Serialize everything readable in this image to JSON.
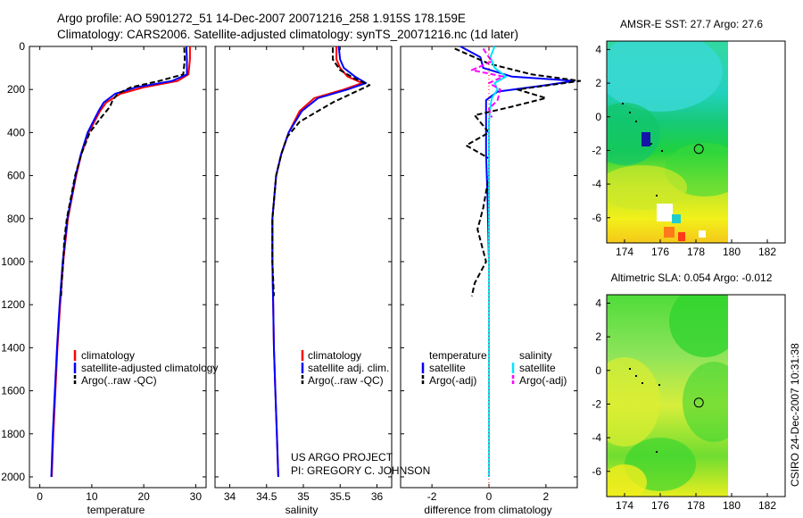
{
  "header": {
    "line1": "Argo profile: AO 5901272_51 14-Dec-2007 20071216_258 1.915S 178.159E",
    "line2": "Climatology: CARS2006. Satellite-adjusted climatology: synTS_20071216.nc (1d later)"
  },
  "credits": {
    "project": "US ARGO PROJECT",
    "pi": "PI: GREGORY C. JOHNSON",
    "stamp": "CSIRO 24-Dec-2007 10:31:38"
  },
  "colors": {
    "climatology": "#ff0000",
    "satellite": "#0000ff",
    "argo": "#000000",
    "salinity_satellite": "#00e5ff",
    "salinity_argo": "#ff00ff"
  },
  "chart_data": [
    {
      "type": "line",
      "id": "temperature",
      "xlabel": "temperature",
      "ylabel": "",
      "xlim": [
        -2,
        32
      ],
      "ylim": [
        2050,
        0
      ],
      "x_ticks": [
        0,
        10,
        20,
        30
      ],
      "x_tick_labels": [
        "0",
        "10",
        "20",
        "30"
      ],
      "y_ticks": [
        0,
        200,
        400,
        600,
        800,
        1000,
        1200,
        1400,
        1600,
        1800,
        2000
      ],
      "y_tick_labels": [
        "0",
        "200",
        "400",
        "600",
        "800",
        "1000",
        "1200",
        "1400",
        "1600",
        "1800",
        "2000"
      ],
      "legend": [
        "climatology",
        "satellite-adjusted climatology",
        "Argo(..raw -QC)"
      ],
      "legend_position": "lower-right",
      "series": [
        {
          "name": "climatology",
          "style": "solid",
          "depth": [
            0,
            60,
            130,
            160,
            190,
            220,
            260,
            300,
            400,
            500,
            600,
            800,
            1000,
            1200,
            1400,
            1600,
            1800,
            2000
          ],
          "values": [
            28.9,
            28.9,
            28.6,
            26.5,
            20.0,
            15.5,
            12.8,
            11.6,
            9.4,
            8.0,
            7.0,
            5.4,
            4.5,
            3.9,
            3.4,
            3.0,
            2.6,
            2.3
          ]
        },
        {
          "name": "satellite-adjusted climatology",
          "style": "solid",
          "depth": [
            0,
            60,
            130,
            160,
            190,
            220,
            260,
            300,
            400,
            500,
            600,
            800,
            1000,
            1200,
            1400,
            1600,
            1800,
            2000
          ],
          "values": [
            28.2,
            28.3,
            28.3,
            25.5,
            18.5,
            14.5,
            12.3,
            11.3,
            9.2,
            7.9,
            6.9,
            5.3,
            4.4,
            3.8,
            3.3,
            2.9,
            2.5,
            2.2
          ]
        },
        {
          "name": "Argo(..raw -QC)",
          "style": "dashed",
          "depth": [
            5,
            60,
            130,
            160,
            190,
            220,
            250,
            280,
            330,
            400,
            500,
            600,
            700,
            800,
            900,
            1000,
            1100,
            1160
          ],
          "values": [
            27.8,
            27.9,
            27.6,
            23.0,
            17.5,
            15.0,
            14.0,
            13.5,
            11.8,
            9.6,
            8.0,
            6.8,
            6.0,
            5.2,
            4.7,
            4.5,
            4.2,
            4.1
          ]
        }
      ]
    },
    {
      "type": "line",
      "id": "salinity",
      "xlabel": "salinity",
      "ylabel": "",
      "xlim": [
        33.8,
        36.2
      ],
      "ylim": [
        2050,
        0
      ],
      "x_ticks": [
        34,
        34.5,
        35,
        35.5,
        36
      ],
      "x_tick_labels": [
        "34",
        "34.5",
        "35",
        "35.5",
        "36"
      ],
      "legend": [
        "climatology",
        "satellite adj. clim.",
        "Argo(..raw -QC)"
      ],
      "legend_position": "lower-right",
      "series": [
        {
          "name": "climatology",
          "style": "solid",
          "depth": [
            0,
            60,
            100,
            140,
            170,
            200,
            240,
            300,
            400,
            500,
            600,
            800,
            1000,
            1200,
            1400,
            1600,
            1800,
            2000
          ],
          "values": [
            35.45,
            35.45,
            35.5,
            35.6,
            35.8,
            35.55,
            35.15,
            34.95,
            34.8,
            34.7,
            34.63,
            34.58,
            34.58,
            34.59,
            34.6,
            34.62,
            34.64,
            34.66
          ]
        },
        {
          "name": "satellite adj. clim.",
          "style": "solid",
          "depth": [
            0,
            60,
            100,
            140,
            170,
            200,
            240,
            300,
            400,
            500,
            600,
            800,
            1000,
            1200,
            1400,
            1600,
            1800,
            2000
          ],
          "values": [
            35.48,
            35.5,
            35.55,
            35.7,
            35.85,
            35.6,
            35.2,
            34.98,
            34.8,
            34.7,
            34.63,
            34.58,
            34.58,
            34.59,
            34.6,
            34.62,
            34.64,
            34.66
          ]
        },
        {
          "name": "Argo(..raw -QC)",
          "style": "dashed",
          "depth": [
            5,
            60,
            110,
            150,
            180,
            220,
            260,
            300,
            350,
            420,
            500,
            600,
            800,
            1000,
            1160
          ],
          "values": [
            35.4,
            35.4,
            35.5,
            35.7,
            35.9,
            35.65,
            35.4,
            35.2,
            34.95,
            34.78,
            34.7,
            34.63,
            34.58,
            34.58,
            34.6
          ]
        }
      ]
    },
    {
      "type": "line",
      "id": "difference",
      "xlabel": "difference from climatology",
      "ylabel": "",
      "xlim": [
        -3.1,
        3.1
      ],
      "ylim": [
        2050,
        0
      ],
      "x_ticks": [
        -2,
        0,
        2
      ],
      "x_tick_labels": [
        "-2",
        "0",
        "2"
      ],
      "legend_groups": [
        {
          "title": "temperature",
          "entries": [
            "satellite",
            "Argo(-adj)"
          ]
        },
        {
          "title": "salinity",
          "entries": [
            "satellite",
            "Argo(-adj)"
          ]
        }
      ],
      "legend_position": "lower-center",
      "series": [
        {
          "name": "temperature satellite",
          "style": "solid",
          "depth": [
            0,
            50,
            100,
            140,
            160,
            180,
            210,
            250,
            300,
            400,
            500,
            700,
            1000,
            1500,
            2000
          ],
          "values": [
            -1.0,
            -0.3,
            -0.2,
            0.8,
            3.0,
            2.0,
            0.3,
            -0.1,
            -0.1,
            -0.1,
            -0.1,
            -0.05,
            0.0,
            0.0,
            0.0
          ]
        },
        {
          "name": "temperature Argo(-adj)",
          "style": "dashed",
          "depth": [
            10,
            80,
            130,
            160,
            200,
            240,
            280,
            320,
            400,
            460,
            520,
            600,
            750,
            850,
            1000,
            1100,
            1160
          ],
          "values": [
            -1.2,
            0.0,
            1.5,
            3.2,
            1.0,
            2.0,
            0.8,
            -0.5,
            0.0,
            -0.8,
            0.0,
            0.0,
            -0.2,
            -0.4,
            -0.1,
            -0.5,
            -0.6
          ]
        },
        {
          "name": "salinity satellite",
          "style": "solid",
          "depth": [
            0,
            50,
            100,
            140,
            170,
            200,
            240,
            280,
            350,
            450,
            600,
            1000,
            1500,
            2000
          ],
          "values": [
            0.2,
            0.05,
            0.2,
            0.6,
            0.2,
            0.3,
            0.1,
            0.05,
            0.0,
            0.0,
            0.0,
            0.0,
            0.0,
            0.0
          ]
        },
        {
          "name": "salinity Argo(-adj)",
          "style": "dashed",
          "depth": [
            10,
            70,
            110,
            140,
            170,
            200,
            250,
            290,
            330
          ],
          "values": [
            -0.2,
            0.1,
            -0.6,
            0.5,
            0.0,
            0.4,
            0.3,
            0.0,
            0.1
          ]
        }
      ]
    },
    {
      "type": "heatmap",
      "id": "sst_map",
      "title": "AMSR-E SST: 27.7  Argo: 27.6",
      "xlim": [
        173,
        183
      ],
      "ylim": [
        -7.5,
        4.5
      ],
      "x_ticks": [
        174,
        176,
        178,
        180,
        182
      ],
      "x_tick_labels": [
        "174",
        "176",
        "178",
        "180",
        "182"
      ],
      "y_ticks": [
        4,
        2,
        0,
        -2,
        -4,
        -6
      ],
      "y_tick_labels": [
        "4",
        "2",
        "0",
        "-2",
        "-4",
        "-6"
      ],
      "data_xlim": [
        173,
        180
      ],
      "marker": {
        "lon": 178.159,
        "lat": -1.915
      }
    },
    {
      "type": "heatmap",
      "id": "sla_map",
      "title": "Altimetric SLA: 0.054  Argo: -0.012",
      "xlim": [
        173,
        183
      ],
      "ylim": [
        -7.5,
        4.5
      ],
      "x_ticks": [
        174,
        176,
        178,
        180,
        182
      ],
      "x_tick_labels": [
        "174",
        "176",
        "178",
        "180",
        "182"
      ],
      "y_ticks": [
        4,
        2,
        0,
        -2,
        -4,
        -6
      ],
      "y_tick_labels": [
        "4",
        "2",
        "0",
        "-2",
        "-4",
        "-6"
      ],
      "data_xlim": [
        173,
        180
      ],
      "marker": {
        "lon": 178.159,
        "lat": -1.915
      }
    }
  ]
}
